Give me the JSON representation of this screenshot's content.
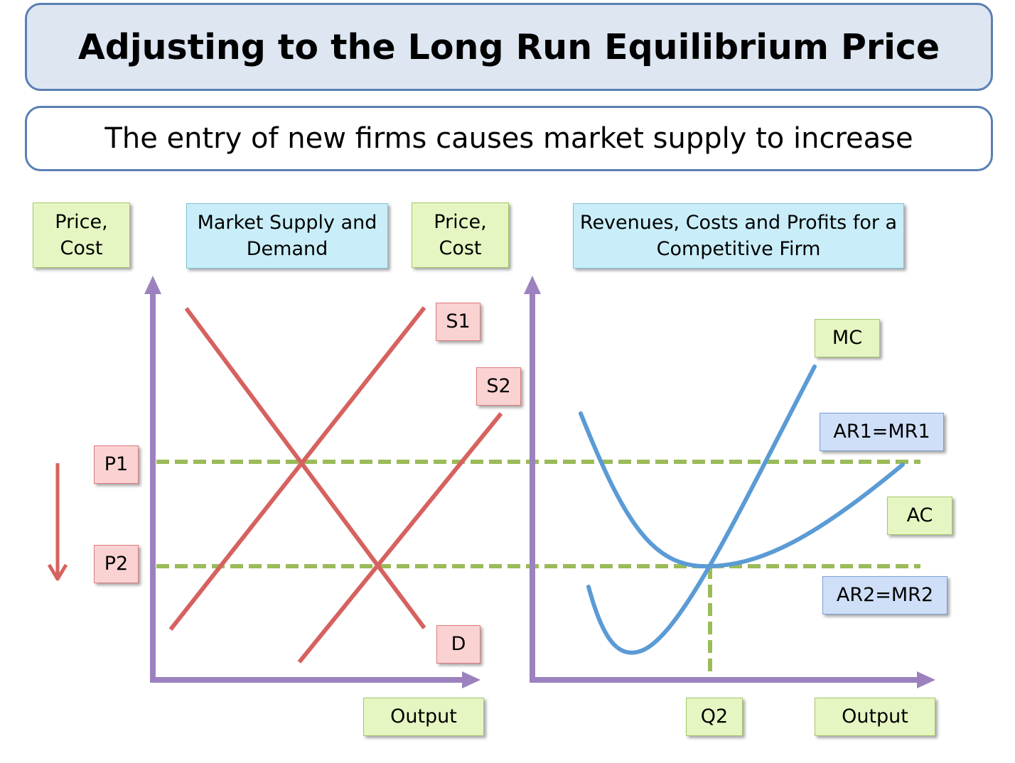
{
  "title": "Adjusting to the Long Run Equilibrium Price",
  "subtitle": "The entry of new firms causes market supply to increase",
  "market_panel": {
    "y_axis_label": "Price,\nCost",
    "heading": "Market Supply and\nDemand",
    "x_axis_label": "Output",
    "curves": {
      "supply_1": "S1",
      "supply_2": "S2",
      "demand": "D"
    },
    "prices": {
      "p1": "P1",
      "p2": "P2"
    }
  },
  "firm_panel": {
    "y_axis_label": "Price,\nCost",
    "heading": "Revenues, Costs and Profits for a\nCompetitive Firm",
    "x_axis_label": "Output",
    "quantity_label": "Q2",
    "curves": {
      "mc": "MC",
      "ac": "AC",
      "ar1": "AR1=MR1",
      "ar2": "AR2=MR2"
    }
  },
  "colors": {
    "title_fill": "#dde6f1",
    "banner_border": "#5a7fb4",
    "axis": "#9b82bf",
    "market_curves": "#d6625f",
    "firm_curves": "#5b9bd5",
    "price_lines": "#9bbb59"
  }
}
